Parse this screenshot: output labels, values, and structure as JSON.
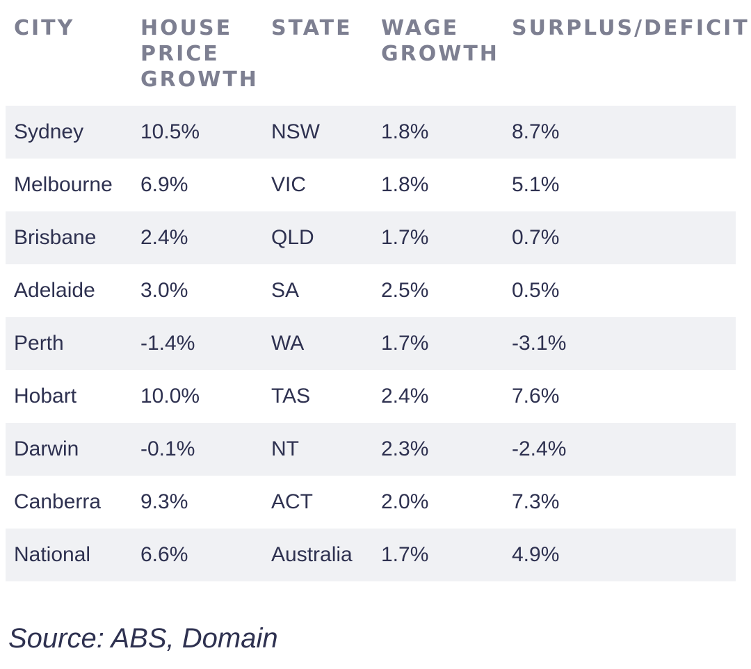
{
  "table": {
    "headers": [
      "CITY",
      "HOUSE\nPRICE\nGROWTH",
      "STATE",
      "WAGE\nGROWTH",
      "SURPLUS/DEFICIT"
    ],
    "rows": [
      [
        "Sydney",
        "10.5%",
        "NSW",
        "1.8%",
        "8.7%"
      ],
      [
        "Melbourne",
        "6.9%",
        "VIC",
        "1.8%",
        "5.1%"
      ],
      [
        "Brisbane",
        "2.4%",
        "QLD",
        "1.7%",
        "0.7%"
      ],
      [
        "Adelaide",
        "3.0%",
        "SA",
        "2.5%",
        "0.5%"
      ],
      [
        "Perth",
        "-1.4%",
        "WA",
        "1.7%",
        "-3.1%"
      ],
      [
        "Hobart",
        "10.0%",
        "TAS",
        "2.4%",
        "7.6%"
      ],
      [
        "Darwin",
        "-0.1%",
        "NT",
        "2.3%",
        "-2.4%"
      ],
      [
        "Canberra",
        "9.3%",
        "ACT",
        "2.0%",
        "7.3%"
      ],
      [
        "National",
        "6.6%",
        "Australia",
        "1.7%",
        "4.9%"
      ]
    ]
  },
  "source": "Source: ABS, Domain",
  "colors": {
    "header_text": "#7d7f91",
    "body_text": "#2e3150",
    "row_shade": "#f0f1f4"
  }
}
